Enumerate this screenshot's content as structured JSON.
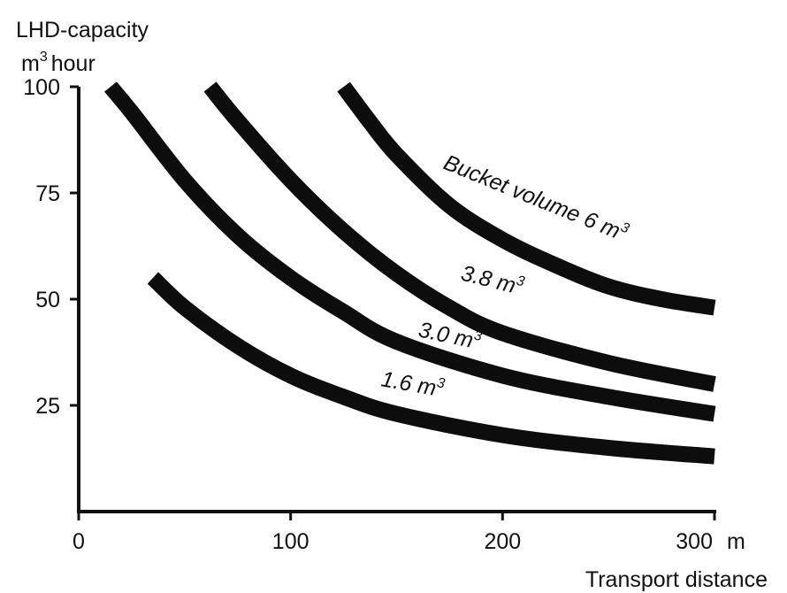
{
  "chart_data": {
    "type": "line",
    "y_title_line1": "LHD-capacity",
    "y_title_line2_m": "m",
    "y_title_line2_exp": "3",
    "y_title_line2_rest": "hour",
    "x_title": "Transport distance",
    "x_unit": "m",
    "xlim": [
      0,
      300
    ],
    "ylim": [
      0,
      100
    ],
    "x_ticks": [
      {
        "value": 0,
        "label": "0"
      },
      {
        "value": 100,
        "label": "100"
      },
      {
        "value": 200,
        "label": "200"
      },
      {
        "value": 300,
        "label": "300"
      }
    ],
    "y_ticks": [
      {
        "value": 25,
        "label": "25"
      },
      {
        "value": 50,
        "label": "50"
      },
      {
        "value": 75,
        "label": "75"
      },
      {
        "value": 100,
        "label": "100"
      }
    ],
    "grid": false,
    "series": [
      {
        "label_text": "1.6 m",
        "label_exp": "3",
        "x": [
          35,
          50,
          75,
          100,
          125,
          150,
          200,
          250,
          300
        ],
        "y": [
          55,
          48,
          39,
          32,
          27,
          23,
          18,
          15,
          13
        ]
      },
      {
        "label_text": "3.0 m",
        "label_exp": "3",
        "x": [
          15,
          25,
          50,
          75,
          100,
          125,
          150,
          200,
          250,
          300
        ],
        "y": [
          100,
          94,
          78,
          65,
          55,
          47,
          40,
          32,
          27,
          23
        ]
      },
      {
        "label_text": "3.8 m",
        "label_exp": "3",
        "x": [
          62,
          75,
          100,
          125,
          150,
          175,
          200,
          250,
          300
        ],
        "y": [
          100,
          92,
          78,
          66,
          56,
          48,
          42,
          35,
          30
        ]
      },
      {
        "label_text": "Bucket volume 6 m",
        "label_exp": "3",
        "x": [
          125,
          137,
          150,
          175,
          200,
          225,
          250,
          275,
          300
        ],
        "y": [
          100,
          92,
          84,
          72,
          64,
          58,
          53,
          50,
          48
        ]
      }
    ]
  }
}
